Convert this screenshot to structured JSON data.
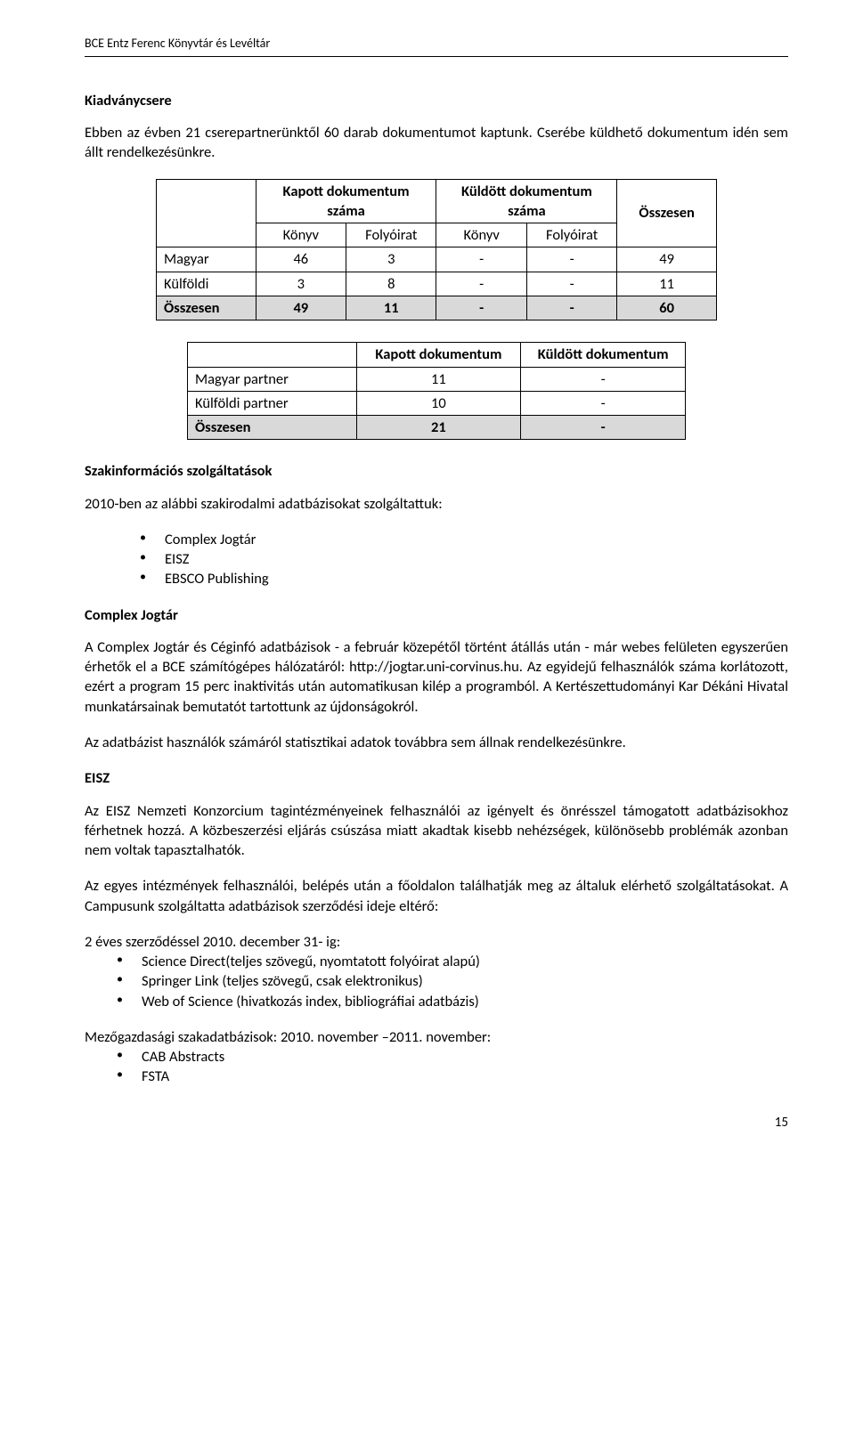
{
  "header": "BCE Entz Ferenc Könyvtár és Levéltár",
  "s1": {
    "title": "Kiadványcsere",
    "intro": "Ebben az évben 21 cserepartnerünktől 60 darab dokumentumot kaptunk. Cserébe küldhető dokumentum idén sem állt rendelkezésünkre."
  },
  "t1": {
    "h_kapott": "Kapott dokumentum száma",
    "h_kuldott": "Küldött dokumentum száma",
    "h_osszesen": "Összesen",
    "sub_konyv": "Könyv",
    "sub_folyoirat": "Folyóirat",
    "rows": [
      {
        "label": "Magyar",
        "a": "46",
        "b": "3",
        "c": "-",
        "d": "-",
        "sum": "49"
      },
      {
        "label": "Külföldi",
        "a": "3",
        "b": "8",
        "c": "-",
        "d": "-",
        "sum": "11"
      }
    ],
    "total": {
      "label": "Összesen",
      "a": "49",
      "b": "11",
      "c": "-",
      "d": "-",
      "sum": "60"
    }
  },
  "t2": {
    "h_kapott": "Kapott dokumentum",
    "h_kuldott": "Küldött dokumentum",
    "rows": [
      {
        "label": "Magyar partner",
        "a": "11",
        "b": "-"
      },
      {
        "label": "Külföldi partner",
        "a": "10",
        "b": "-"
      }
    ],
    "total": {
      "label": "Összesen",
      "a": "21",
      "b": "-"
    }
  },
  "s2": {
    "title": "Szakinformációs szolgáltatások",
    "line": "2010-ben az alábbi szakirodalmi adatbázisokat szolgáltattuk:",
    "items": [
      "Complex Jogtár",
      "EISZ",
      "EBSCO Publishing"
    ]
  },
  "s3": {
    "title": "Complex Jogtár",
    "p1": "A Complex Jogtár és Céginfó adatbázisok - a február közepétől történt átállás után - már webes felületen egyszerűen érhetők el a BCE számítógépes hálózatáról: http://jogtar.uni-corvinus.hu. Az egyidejű felhasználók száma korlátozott, ezért a program 15 perc inaktivitás után automatikusan kilép a programból. A Kertészettudományi Kar Dékáni Hivatal munkatársainak bemutatót tartottunk az újdonságokról.",
    "p2": "Az adatbázist használók számáról statisztikai adatok továbbra sem állnak rendelkezésünkre."
  },
  "s4": {
    "title": "EISZ",
    "p1": "Az EISZ Nemzeti Konzorcium tagintézményeinek felhasználói az igényelt és önrésszel támogatott adatbázisokhoz férhetnek hozzá. A közbeszerzési eljárás csúszása miatt akadtak kisebb nehézségek, különösebb problémák azonban nem voltak tapasztalhatók.",
    "p2": "Az egyes intézmények felhasználói, belépés után a főoldalon találhatják meg az általuk elérhető szolgáltatásokat. A Campusunk szolgáltatta adatbázisok szerződési ideje eltérő:",
    "sub1_label": "2 éves szerződéssel 2010. december 31- ig:",
    "sub1_items": [
      "Science Direct(teljes szövegű, nyomtatott folyóirat alapú)",
      "Springer Link (teljes szövegű, csak elektronikus)",
      "Web of Science (hivatkozás index, bibliográfiai adatbázis)"
    ],
    "sub2_label": "Mezőgazdasági szakadatbázisok: 2010. november –2011. november:",
    "sub2_items": [
      "CAB Abstracts",
      "FSTA"
    ]
  },
  "page": "15"
}
